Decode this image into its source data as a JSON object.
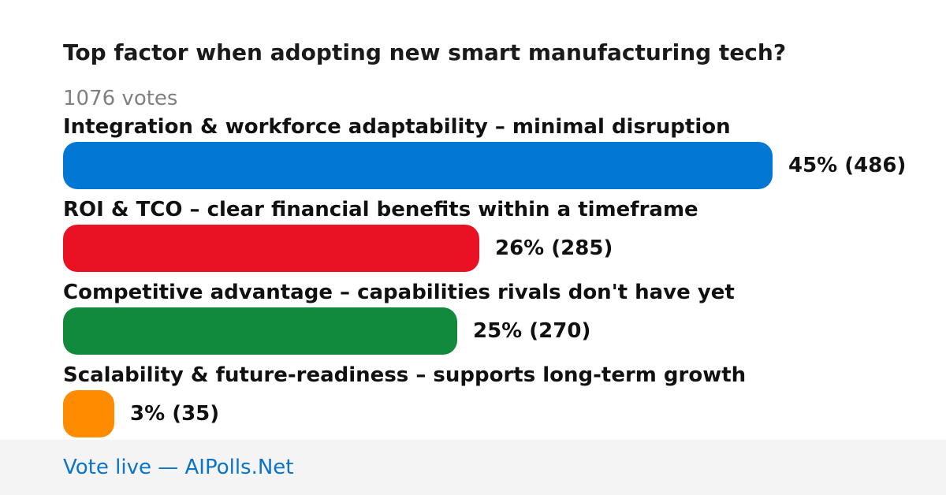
{
  "poll": {
    "title": "Top factor when adopting new smart manufacturing tech?",
    "votes_label": "1076 votes"
  },
  "chart_data": {
    "type": "bar",
    "title": "Top factor when adopting new smart manufacturing tech?",
    "total_votes": 1076,
    "categories": [
      "Integration & workforce adaptability – minimal disruption",
      "ROI & TCO – clear financial benefits within a timeframe",
      "Competitive advantage – capabilities rivals don't have yet",
      "Scalability & future-readiness – supports long-term growth"
    ],
    "values": [
      486,
      285,
      270,
      35
    ],
    "percents": [
      45,
      26,
      25,
      3
    ],
    "value_labels": [
      "45% (486)",
      "26% (285)",
      "25% (270)",
      "3% (35)"
    ],
    "colors": [
      "#0277d4",
      "#e81224",
      "#118a3e",
      "#ff8c00"
    ]
  },
  "footer": {
    "link_text": "Vote live — AIPolls.Net"
  }
}
